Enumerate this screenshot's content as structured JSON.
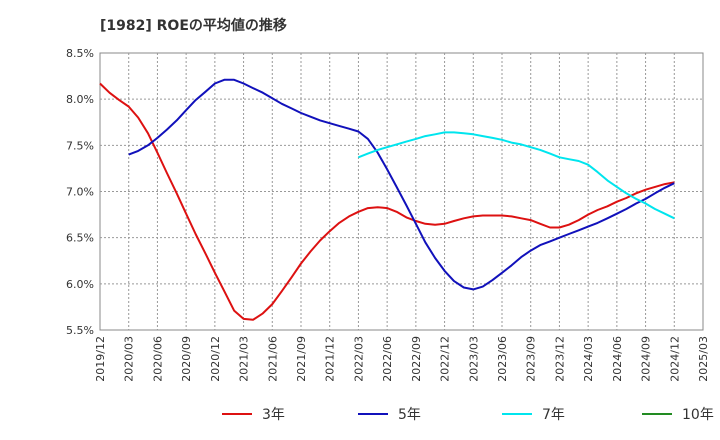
{
  "chart_data": {
    "type": "line",
    "title": "[1982]  ROEの平均値の推移",
    "xlabel": "",
    "ylabel": "",
    "ylim": [
      5.5,
      8.5
    ],
    "y_ticks": [
      "5.5%",
      "6.0%",
      "6.5%",
      "7.0%",
      "7.5%",
      "8.0%",
      "8.5%"
    ],
    "y_tick_values": [
      5.5,
      6.0,
      6.5,
      7.0,
      7.5,
      8.0,
      8.5
    ],
    "x_ticks": [
      "2019/12",
      "2020/03",
      "2020/06",
      "2020/09",
      "2020/12",
      "2021/03",
      "2021/06",
      "2021/09",
      "2021/12",
      "2022/03",
      "2022/06",
      "2022/09",
      "2022/12",
      "2023/03",
      "2023/06",
      "2023/09",
      "2023/12",
      "2024/03",
      "2024/06",
      "2024/09",
      "2024/12",
      "2025/03"
    ],
    "grid": "dashed",
    "legend_position": "bottom",
    "series": [
      {
        "name": "3年",
        "color": "#dd1111",
        "x": [
          0,
          0.33,
          0.67,
          1,
          1.33,
          1.67,
          2,
          2.33,
          2.67,
          3,
          3.33,
          3.67,
          4,
          4.33,
          4.67,
          5,
          5.33,
          5.67,
          6,
          6.33,
          6.67,
          7,
          7.33,
          7.67,
          8,
          8.33,
          8.67,
          9,
          9.33,
          9.67,
          10,
          10.33,
          10.67,
          11,
          11.33,
          11.67,
          12,
          12.33,
          12.67,
          13,
          13.33,
          13.67,
          14,
          14.33,
          14.67,
          15,
          15.33,
          15.67,
          16,
          16.33,
          16.67,
          17,
          17.33,
          17.67,
          18,
          18.33,
          18.67,
          19,
          19.33,
          19.67,
          20
        ],
        "values": [
          8.17,
          8.07,
          7.99,
          7.92,
          7.8,
          7.63,
          7.42,
          7.2,
          6.98,
          6.76,
          6.54,
          6.33,
          6.12,
          5.92,
          5.71,
          5.62,
          5.61,
          5.68,
          5.78,
          5.92,
          6.07,
          6.22,
          6.35,
          6.47,
          6.57,
          6.66,
          6.73,
          6.78,
          6.82,
          6.83,
          6.82,
          6.78,
          6.72,
          6.68,
          6.65,
          6.64,
          6.65,
          6.68,
          6.71,
          6.73,
          6.74,
          6.74,
          6.74,
          6.73,
          6.71,
          6.69,
          6.65,
          6.61,
          6.61,
          6.64,
          6.69,
          6.75,
          6.8,
          6.84,
          6.89,
          6.93,
          6.98,
          7.02,
          7.05,
          7.08,
          7.1
        ]
      },
      {
        "name": "5年",
        "color": "#1111bb",
        "x": [
          1,
          1.33,
          1.67,
          2,
          2.33,
          2.67,
          3,
          3.33,
          3.67,
          4,
          4.33,
          4.67,
          5,
          5.33,
          5.67,
          6,
          6.33,
          6.67,
          7,
          7.33,
          7.67,
          8,
          8.33,
          8.67,
          9,
          9.33,
          9.67,
          10,
          10.33,
          10.67,
          11,
          11.33,
          11.67,
          12,
          12.33,
          12.67,
          13,
          13.33,
          13.67,
          14,
          14.33,
          14.67,
          15,
          15.33,
          15.67,
          16,
          16.33,
          16.67,
          17,
          17.33,
          17.67,
          18,
          18.33,
          18.67,
          19,
          19.33,
          19.67,
          20
        ],
        "values": [
          7.4,
          7.44,
          7.5,
          7.58,
          7.67,
          7.77,
          7.88,
          7.99,
          8.08,
          8.17,
          8.21,
          8.21,
          8.17,
          8.12,
          8.07,
          8.01,
          7.95,
          7.9,
          7.85,
          7.81,
          7.77,
          7.74,
          7.71,
          7.68,
          7.65,
          7.57,
          7.42,
          7.24,
          7.05,
          6.85,
          6.65,
          6.45,
          6.28,
          6.14,
          6.03,
          5.96,
          5.94,
          5.97,
          6.04,
          6.12,
          6.2,
          6.29,
          6.36,
          6.42,
          6.46,
          6.5,
          6.54,
          6.58,
          6.62,
          6.66,
          6.71,
          6.76,
          6.81,
          6.87,
          6.92,
          6.98,
          7.04,
          7.09
        ]
      },
      {
        "name": "7年",
        "color": "#00e5ee",
        "x": [
          9,
          9.33,
          9.67,
          10,
          10.33,
          10.67,
          11,
          11.33,
          11.67,
          12,
          12.33,
          12.67,
          13,
          13.33,
          13.67,
          14,
          14.33,
          14.67,
          15,
          15.33,
          15.67,
          16,
          16.33,
          16.67,
          17,
          17.33,
          17.67,
          18,
          18.33,
          18.67,
          19,
          19.33,
          19.67,
          20
        ],
        "values": [
          7.37,
          7.41,
          7.45,
          7.48,
          7.51,
          7.54,
          7.57,
          7.6,
          7.62,
          7.64,
          7.64,
          7.63,
          7.62,
          7.6,
          7.58,
          7.56,
          7.53,
          7.51,
          7.48,
          7.45,
          7.41,
          7.37,
          7.35,
          7.33,
          7.29,
          7.21,
          7.12,
          7.05,
          6.98,
          6.92,
          6.87,
          6.81,
          6.76,
          6.71
        ]
      },
      {
        "name": "10年",
        "color": "#228b22",
        "x": [],
        "values": []
      }
    ]
  }
}
